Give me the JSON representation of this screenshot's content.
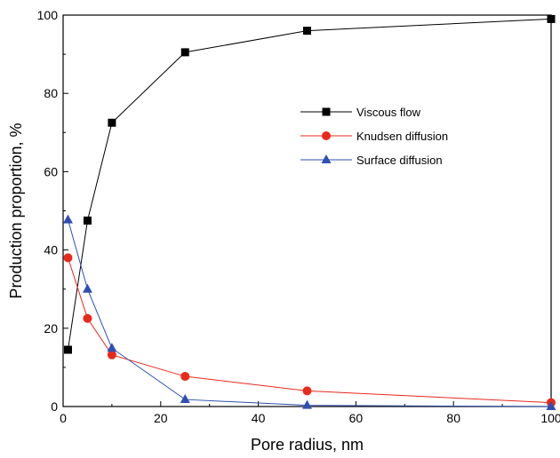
{
  "chart_data": {
    "type": "line",
    "xlabel": "Pore radius, nm",
    "ylabel": "Production proportion, %",
    "xlim": [
      0,
      100
    ],
    "ylim": [
      0,
      100
    ],
    "xticks": [
      0,
      20,
      40,
      60,
      80,
      100
    ],
    "yticks": [
      0,
      20,
      40,
      60,
      80,
      100
    ],
    "grid": false,
    "legend": "upper-right inside plot",
    "series": [
      {
        "name": "Viscous flow",
        "color": "#000000",
        "marker": "square",
        "x": [
          1,
          5,
          10,
          25,
          50,
          100
        ],
        "y": [
          14.5,
          47.5,
          72.5,
          90.5,
          96,
          99
        ]
      },
      {
        "name": "Knudsen diffusion",
        "color": "#e8291c",
        "marker": "circle",
        "x": [
          1,
          5,
          10,
          25,
          50,
          100
        ],
        "y": [
          38,
          22.5,
          13.2,
          7.7,
          4,
          1
        ]
      },
      {
        "name": "Surface diffusion",
        "color": "#2f4fb1",
        "marker": "triangle",
        "x": [
          1,
          5,
          10,
          25,
          50,
          100
        ],
        "y": [
          47.7,
          30,
          14.9,
          1.8,
          0.3,
          0
        ]
      }
    ]
  }
}
